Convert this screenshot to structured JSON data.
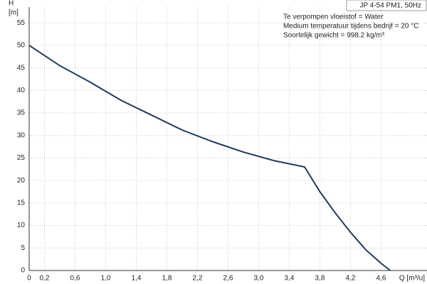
{
  "chart_data": {
    "type": "line",
    "title": "JP 4-54 PM1, 50Hz",
    "annotations": [
      "Te verpompen vloeistof = Water",
      "Medium temperatuur tijdens bedrijf = 20 °C",
      "Soortelijk gewicht = 998.2 kg/m³"
    ],
    "y_label": "H",
    "y_unit": "[m]",
    "x_label": "Q [m³/u]",
    "x": [
      0,
      0.4,
      0.8,
      1.2,
      1.6,
      2.0,
      2.4,
      2.8,
      3.2,
      3.6,
      3.8,
      4.0,
      4.2,
      4.4,
      4.6,
      4.72
    ],
    "values": [
      50,
      45.5,
      41.8,
      37.8,
      34.5,
      31.2,
      28.6,
      26.3,
      24.4,
      23,
      17.5,
      12.8,
      8.5,
      4.6,
      1.6,
      0
    ],
    "color": "#1f3a5f",
    "xlim": [
      0,
      5.2
    ],
    "ylim": [
      0,
      58.5
    ],
    "xticks": [
      0,
      {
        "value": 0.2,
        "label": "0,2"
      },
      {
        "value": 0.6,
        "label": "0,6"
      },
      {
        "value": 1.0,
        "label": "1,0"
      },
      {
        "value": 1.4,
        "label": "1,4"
      },
      {
        "value": 1.8,
        "label": "1,8"
      },
      {
        "value": 2.2,
        "label": "2,2"
      },
      {
        "value": 2.6,
        "label": "2,6"
      },
      {
        "value": 3.0,
        "label": "3,0"
      },
      {
        "value": 3.4,
        "label": "3,4"
      },
      {
        "value": 3.8,
        "label": "3,8"
      },
      {
        "value": 4.2,
        "label": "4,2"
      },
      {
        "value": 4.6,
        "label": "4,6"
      }
    ],
    "yticks": [
      0,
      5,
      10,
      15,
      20,
      25,
      30,
      35,
      40,
      45,
      50,
      55
    ],
    "grid": true
  }
}
